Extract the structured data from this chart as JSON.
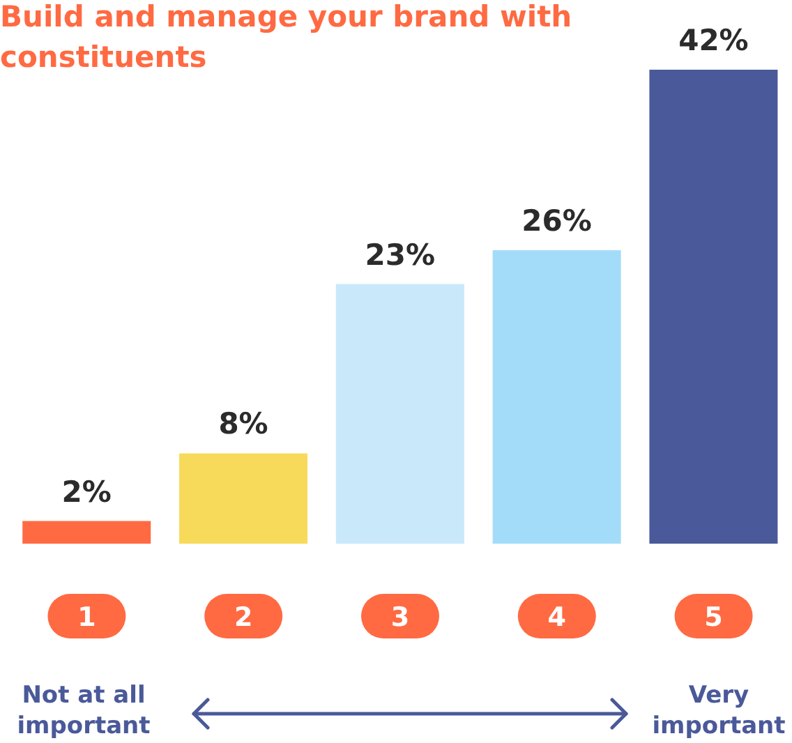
{
  "chart_data": {
    "type": "bar",
    "title": "Build and manage your brand with constituents",
    "categories": [
      "1",
      "2",
      "3",
      "4",
      "5"
    ],
    "values": [
      2,
      8,
      23,
      26,
      42
    ],
    "value_labels": [
      "2%",
      "8%",
      "23%",
      "26%",
      "42%"
    ],
    "colors": [
      "#ff6a42",
      "#f8da5b",
      "#c9e9fb",
      "#a3dcf8",
      "#4a5999"
    ],
    "annotations": [
      "Not at all important",
      "Very important"
    ]
  }
}
